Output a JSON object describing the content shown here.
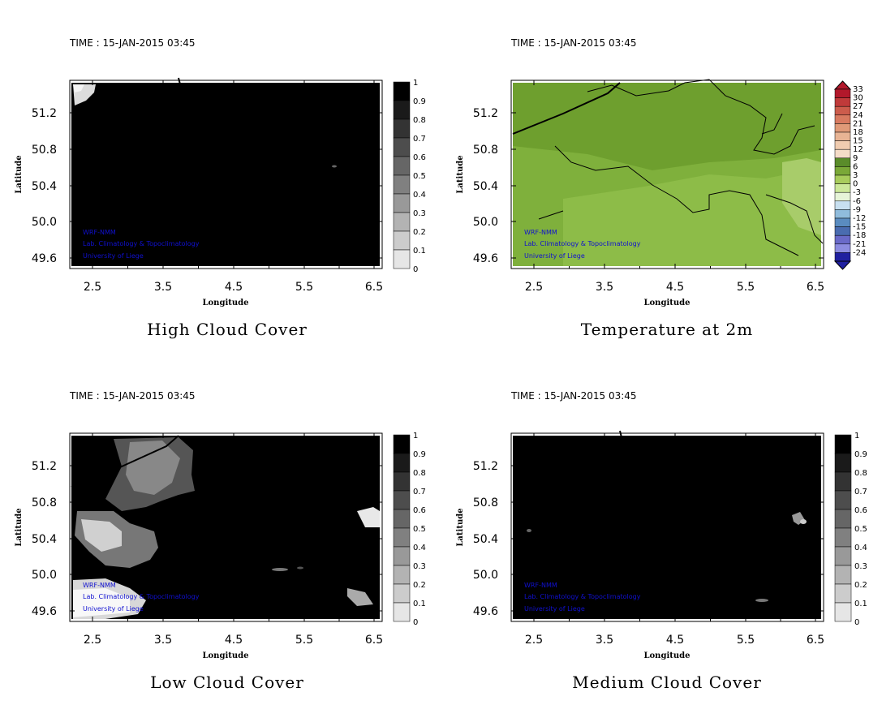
{
  "panels": [
    {
      "time": "TIME : 15-JAN-2015 03:45",
      "title": "High Cloud Cover",
      "variable": "high_cloud_cover",
      "colorbar": [
        "1",
        "0.9",
        "0.8",
        "0.7",
        "0.6",
        "0.5",
        "0.4",
        "0.3",
        "0.2",
        "0.1",
        "0"
      ],
      "colorbar_colors": [
        "#000000",
        "#1a1a1a",
        "#333333",
        "#4d4d4d",
        "#666666",
        "#808080",
        "#999999",
        "#b3b3b3",
        "#cccccc",
        "#e6e6e6"
      ],
      "field_description": "almost entirely overcast (value ~1)"
    },
    {
      "time": "TIME : 15-JAN-2015 03:45",
      "title": "Temperature at 2m",
      "variable": "temperature_2m",
      "colorbar": [
        "33",
        "30",
        "27",
        "24",
        "21",
        "18",
        "15",
        "12",
        "9",
        "6",
        "3",
        "0",
        "-3",
        "-6",
        "-9",
        "-12",
        "-15",
        "-18",
        "-21",
        "-24"
      ],
      "colorbar_colors": [
        "#b2182b",
        "#c03a3a",
        "#cc5c4c",
        "#d87a60",
        "#e09a78",
        "#e8b494",
        "#f0ccb0",
        "#f5dcc8",
        "#5a8c2a",
        "#7aa838",
        "#a8cc5c",
        "#cce89a",
        "#e6f4d8",
        "#c8e0f0",
        "#90bcdc",
        "#5a8cc0",
        "#4a6cb0",
        "#6a6ac8",
        "#8c8ce0",
        "#2020a0"
      ]
    },
    {
      "time": "TIME : 15-JAN-2015 03:45",
      "title": "Low Cloud Cover",
      "variable": "low_cloud_cover",
      "colorbar": [
        "1",
        "0.9",
        "0.8",
        "0.7",
        "0.6",
        "0.5",
        "0.4",
        "0.3",
        "0.2",
        "0.1",
        "0"
      ],
      "colorbar_colors": [
        "#000000",
        "#1a1a1a",
        "#333333",
        "#4d4d4d",
        "#666666",
        "#808080",
        "#999999",
        "#b3b3b3",
        "#cccccc",
        "#e6e6e6"
      ]
    },
    {
      "time": "TIME : 15-JAN-2015 03:45",
      "title": "Medium Cloud Cover",
      "variable": "medium_cloud_cover",
      "colorbar": [
        "1",
        "0.9",
        "0.8",
        "0.7",
        "0.6",
        "0.5",
        "0.4",
        "0.3",
        "0.2",
        "0.1",
        "0"
      ],
      "colorbar_colors": [
        "#000000",
        "#1a1a1a",
        "#333333",
        "#4d4d4d",
        "#666666",
        "#808080",
        "#999999",
        "#b3b3b3",
        "#cccccc",
        "#e6e6e6"
      ]
    }
  ],
  "axes": {
    "xlabel": "Longitude",
    "ylabel": "Latitude",
    "xticks": [
      "2.5",
      "3.5",
      "4.5",
      "5.5",
      "6.5"
    ],
    "yticks": [
      "51.2",
      "50.8",
      "50.4",
      "50.0",
      "49.6"
    ]
  },
  "credits": [
    "WRF-NMM",
    "Lab. Climatology & Topoclimatology",
    "University of Liege"
  ]
}
